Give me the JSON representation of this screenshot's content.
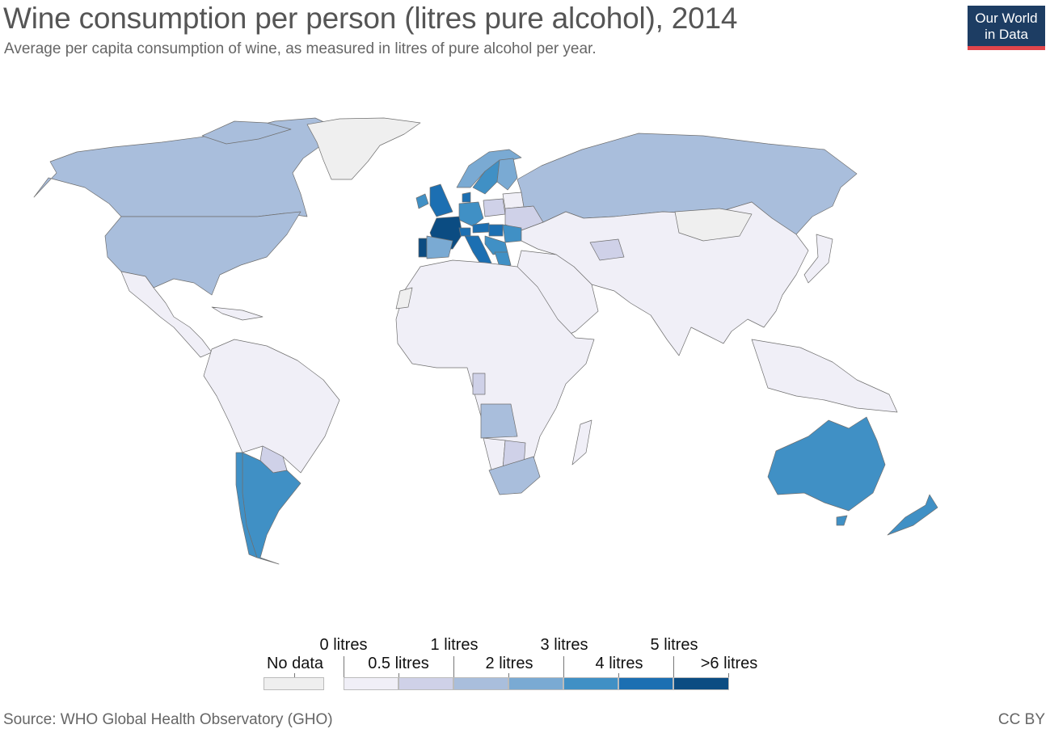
{
  "title": "Wine consumption per person (litres pure alcohol), 2014",
  "subtitle": "Average per capita consumption of wine, as measured in litres of pure alcohol per year.",
  "logo": {
    "line1": "Our World",
    "line2": "in Data",
    "bg": "#1d3d63",
    "accent": "#e0454b"
  },
  "source": "Source: WHO Global Health Observatory (GHO)",
  "license": "CC BY",
  "legend": {
    "no_data_label": "No data",
    "no_data_color": "#efefef",
    "top_labels": [
      "0 litres",
      "1 litres",
      "3 litres",
      "5 litres"
    ],
    "bottom_labels": [
      "0.5 litres",
      "2 litres",
      "4 litres",
      ">6 litres"
    ],
    "bins": [
      {
        "min": 0,
        "max": 0.5,
        "color": "#f0eff7"
      },
      {
        "min": 0.5,
        "max": 1,
        "color": "#cfd1e8"
      },
      {
        "min": 1,
        "max": 2,
        "color": "#a9bedc"
      },
      {
        "min": 2,
        "max": 3,
        "color": "#7aaad3"
      },
      {
        "min": 3,
        "max": 4,
        "color": "#4090c5"
      },
      {
        "min": 4,
        "max": 5,
        "color": "#1c6fb2"
      },
      {
        "min": 5,
        "max": 6,
        "color": "#0b4c82"
      }
    ]
  },
  "chart_data": {
    "type": "choropleth",
    "year": 2014,
    "unit": "litres pure alcohol per person",
    "regions": [
      {
        "name": "Canada",
        "bin": 2
      },
      {
        "name": "United States",
        "bin": 2
      },
      {
        "name": "Greenland",
        "bin": -1
      },
      {
        "name": "Russia",
        "bin": 2
      },
      {
        "name": "Central & South America",
        "bin": 0
      },
      {
        "name": "Argentina",
        "bin": 4
      },
      {
        "name": "Chile",
        "bin": 4
      },
      {
        "name": "Uruguay",
        "bin": 4
      },
      {
        "name": "Paraguay",
        "bin": 1
      },
      {
        "name": "France",
        "bin": 6
      },
      {
        "name": "Portugal",
        "bin": 6
      },
      {
        "name": "Spain",
        "bin": 3
      },
      {
        "name": "United Kingdom",
        "bin": 5
      },
      {
        "name": "Ireland",
        "bin": 4
      },
      {
        "name": "Italy",
        "bin": 5
      },
      {
        "name": "Germany",
        "bin": 4
      },
      {
        "name": "Switzerland",
        "bin": 5
      },
      {
        "name": "Austria",
        "bin": 5
      },
      {
        "name": "Denmark",
        "bin": 5
      },
      {
        "name": "Sweden",
        "bin": 4
      },
      {
        "name": "Norway",
        "bin": 3
      },
      {
        "name": "Finland",
        "bin": 3
      },
      {
        "name": "Poland",
        "bin": 1
      },
      {
        "name": "Ukraine",
        "bin": 1
      },
      {
        "name": "Belarus",
        "bin": 0
      },
      {
        "name": "Hungary",
        "bin": 5
      },
      {
        "name": "Romania",
        "bin": 4
      },
      {
        "name": "Greece",
        "bin": 4
      },
      {
        "name": "Balkans",
        "bin": 4
      },
      {
        "name": "Africa",
        "bin": 0
      },
      {
        "name": "Angola",
        "bin": 2
      },
      {
        "name": "Gabon",
        "bin": 1
      },
      {
        "name": "South Africa",
        "bin": 2
      },
      {
        "name": "Namibia",
        "bin": 0
      },
      {
        "name": "Botswana",
        "bin": 1
      },
      {
        "name": "Western Sahara",
        "bin": -1
      },
      {
        "name": "Asia",
        "bin": 0
      },
      {
        "name": "Turkmenistan",
        "bin": 1
      },
      {
        "name": "Mongolia",
        "bin": -1
      },
      {
        "name": "Australia",
        "bin": 4
      },
      {
        "name": "New Zealand",
        "bin": 4
      }
    ]
  }
}
